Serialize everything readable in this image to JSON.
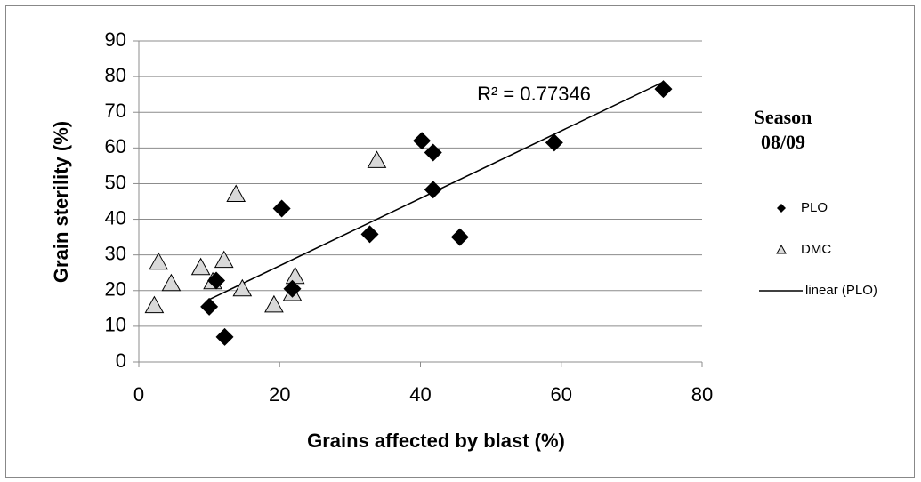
{
  "chart_data": {
    "type": "scatter",
    "xlabel": "Grains affected by blast (%)",
    "ylabel": "Grain sterility (%)",
    "legend_title": [
      "Season",
      "08/09"
    ],
    "annotation": "R² = 0.77346",
    "xlim": [
      0,
      80
    ],
    "xticks": [
      0,
      20,
      40,
      60,
      80
    ],
    "ylim": [
      0,
      90
    ],
    "yticks": [
      0,
      10,
      20,
      30,
      40,
      50,
      60,
      70,
      80,
      90
    ],
    "grid": true,
    "legend": "right",
    "series": [
      {
        "name": "PLO",
        "marker": "diamond",
        "color": "#000000",
        "x": [
          74.5,
          59,
          40.2,
          41.8,
          41.8,
          45.6,
          32.8,
          20.3,
          10,
          12.2,
          11,
          21.8
        ],
        "values": [
          76.5,
          61.5,
          62,
          58.7,
          48.3,
          35,
          35.8,
          43,
          15.5,
          7,
          22.8,
          20.5
        ]
      },
      {
        "name": "DMC",
        "marker": "triangle",
        "color": "#d9d9d9",
        "x": [
          2.8,
          2.2,
          4.6,
          8.8,
          12.1,
          10.5,
          13.8,
          14.7,
          19.2,
          21.8,
          22.2,
          33.8
        ],
        "values": [
          28,
          15.8,
          22,
          26.5,
          28.5,
          22.5,
          47,
          20.5,
          16,
          19.2,
          24,
          56.5
        ]
      },
      {
        "name": "linear (PLO)",
        "marker": "line",
        "color": "#000000",
        "x": [
          10,
          74.5
        ],
        "values": [
          17.5,
          78.5
        ]
      }
    ]
  }
}
